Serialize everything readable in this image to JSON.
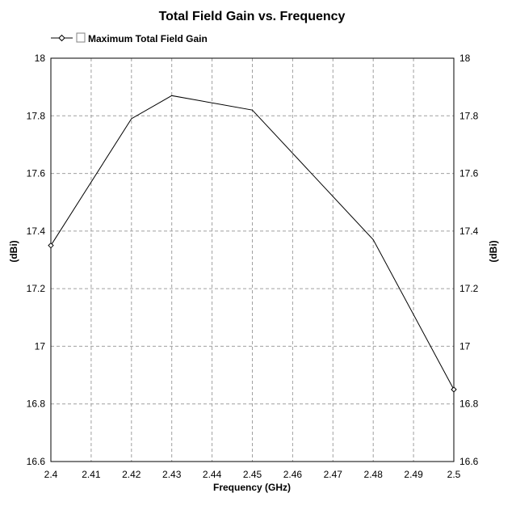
{
  "chart_data": {
    "type": "line",
    "title": "Total Field Gain vs. Frequency",
    "xlabel": "Frequency (GHz)",
    "ylabel": "(dBi)",
    "ylabel_right": "(dBi)",
    "xlim": [
      2.4,
      2.5
    ],
    "ylim": [
      16.6,
      18
    ],
    "x_ticks": [
      "2.4",
      "2.41",
      "2.42",
      "2.43",
      "2.44",
      "2.45",
      "2.46",
      "2.47",
      "2.48",
      "2.49",
      "2.5"
    ],
    "y_ticks": [
      "16.6",
      "16.8",
      "17",
      "17.2",
      "17.4",
      "17.6",
      "17.8",
      "18"
    ],
    "grid": true,
    "legend_placement": "top-left",
    "series": [
      {
        "name": "Maximum Total Field Gain",
        "color": "#000000",
        "marker": "diamond",
        "x": [
          2.4,
          2.42,
          2.43,
          2.45,
          2.48,
          2.5
        ],
        "y": [
          17.35,
          17.79,
          17.87,
          17.82,
          17.37,
          16.85
        ],
        "marked_points": [
          0,
          5
        ]
      }
    ]
  }
}
